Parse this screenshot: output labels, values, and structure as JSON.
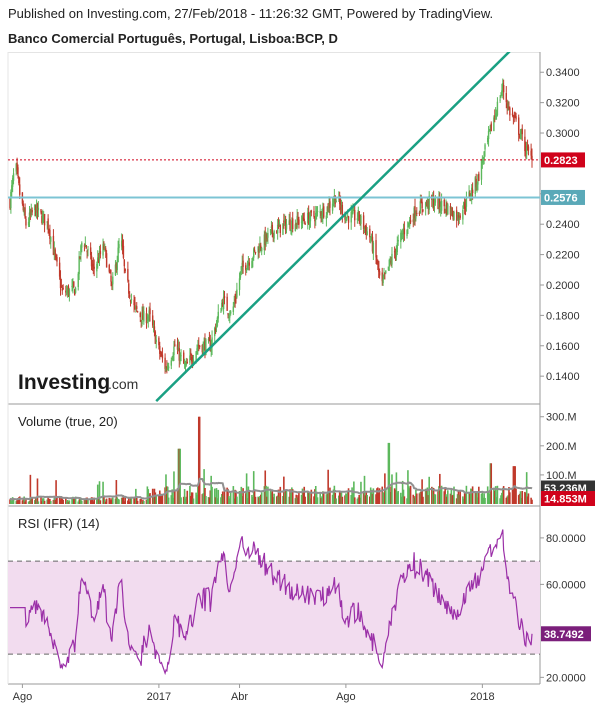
{
  "header": {
    "published": "Published on Investing.com, 27/Feb/2018 - 11:26:32 GMT, Powered by TradingView.",
    "title": "Banco Comercial Português, Portugal, Lisboa:BCP, D"
  },
  "logo": {
    "text": "Investing",
    "suffix": ".com"
  },
  "colors": {
    "up": "#5cb85c",
    "down": "#c0392b",
    "trendline": "#1aa083",
    "support": "#7cc4d4",
    "price_tag": "#d0021b",
    "support_tag": "#5aa9b8",
    "volume_ma": "#909090",
    "rsi_line": "#9b30a8",
    "rsi_band": "#f2dcef",
    "volume_tag": "#333333",
    "rsi_tag": "#7b1f7b"
  },
  "chart_data": [
    {
      "type": "candlestick",
      "panel": "price",
      "title": "Banco Comercial Português, Portugal, Lisboa:BCP, D",
      "x_ticks": [
        "Ago",
        "2017",
        "Abr",
        "Ago",
        "2018"
      ],
      "x_tick_dates": [
        "2016-08-01",
        "2017-01-02",
        "2017-04-03",
        "2017-08-01",
        "2018-01-02"
      ],
      "y_ticks": [
        "0.1400",
        "0.1600",
        "0.1800",
        "0.2000",
        "0.2200",
        "0.2400",
        "0.2600",
        "0.3000",
        "0.3200",
        "0.3400"
      ],
      "ylim": [
        0.123,
        0.352
      ],
      "anchors": [
        {
          "date": "2016-07-18",
          "close": 0.255
        },
        {
          "date": "2016-07-24",
          "close": 0.28
        },
        {
          "date": "2016-07-29",
          "close": 0.26
        },
        {
          "date": "2016-08-05",
          "close": 0.24
        },
        {
          "date": "2016-08-15",
          "close": 0.25
        },
        {
          "date": "2016-08-30",
          "close": 0.24
        },
        {
          "date": "2016-09-15",
          "close": 0.195
        },
        {
          "date": "2016-09-30",
          "close": 0.197
        },
        {
          "date": "2016-10-08",
          "close": 0.232
        },
        {
          "date": "2016-10-20",
          "close": 0.21
        },
        {
          "date": "2016-11-01",
          "close": 0.225
        },
        {
          "date": "2016-11-10",
          "close": 0.198
        },
        {
          "date": "2016-11-20",
          "close": 0.232
        },
        {
          "date": "2016-11-25",
          "close": 0.205
        },
        {
          "date": "2016-12-05",
          "close": 0.185
        },
        {
          "date": "2016-12-15",
          "close": 0.178
        },
        {
          "date": "2016-12-22",
          "close": 0.18
        },
        {
          "date": "2017-01-03",
          "close": 0.155
        },
        {
          "date": "2017-01-10",
          "close": 0.145
        },
        {
          "date": "2017-01-20",
          "close": 0.16
        },
        {
          "date": "2017-02-01",
          "close": 0.145
        },
        {
          "date": "2017-02-15",
          "close": 0.16
        },
        {
          "date": "2017-03-01",
          "close": 0.16
        },
        {
          "date": "2017-03-15",
          "close": 0.19
        },
        {
          "date": "2017-03-25",
          "close": 0.18
        },
        {
          "date": "2017-04-05",
          "close": 0.21
        },
        {
          "date": "2017-04-25",
          "close": 0.225
        },
        {
          "date": "2017-05-10",
          "close": 0.235
        },
        {
          "date": "2017-05-25",
          "close": 0.24
        },
        {
          "date": "2017-06-10",
          "close": 0.242
        },
        {
          "date": "2017-06-25",
          "close": 0.245
        },
        {
          "date": "2017-07-10",
          "close": 0.25
        },
        {
          "date": "2017-07-20",
          "close": 0.258
        },
        {
          "date": "2017-08-01",
          "close": 0.245
        },
        {
          "date": "2017-08-15",
          "close": 0.245
        },
        {
          "date": "2017-08-28",
          "close": 0.232
        },
        {
          "date": "2017-09-05",
          "close": 0.215
        },
        {
          "date": "2017-09-10",
          "close": 0.198
        },
        {
          "date": "2017-09-20",
          "close": 0.215
        },
        {
          "date": "2017-10-05",
          "close": 0.235
        },
        {
          "date": "2017-10-20",
          "close": 0.25
        },
        {
          "date": "2017-11-05",
          "close": 0.255
        },
        {
          "date": "2017-11-20",
          "close": 0.252
        },
        {
          "date": "2017-12-05",
          "close": 0.245
        },
        {
          "date": "2017-12-15",
          "close": 0.255
        },
        {
          "date": "2017-12-28",
          "close": 0.27
        },
        {
          "date": "2018-01-08",
          "close": 0.295
        },
        {
          "date": "2018-01-15",
          "close": 0.31
        },
        {
          "date": "2018-01-25",
          "close": 0.33
        },
        {
          "date": "2018-02-01",
          "close": 0.315
        },
        {
          "date": "2018-02-10",
          "close": 0.305
        },
        {
          "date": "2018-02-20",
          "close": 0.29
        },
        {
          "date": "2018-02-27",
          "close": 0.2823
        }
      ],
      "last_price": 0.2823,
      "last_price_label": "0.2823",
      "support_level": 0.2576,
      "support_label": "0.2576",
      "trendline": [
        {
          "date": "2016-12-30",
          "price": 0.1236
        },
        {
          "date": "2018-02-27",
          "price": 0.2762
        }
      ]
    },
    {
      "type": "bar",
      "panel": "volume",
      "label": "Volume (true, 20)",
      "y_ticks": [
        "100.M",
        "200.M",
        "300.M"
      ],
      "ylim": [
        0,
        330
      ],
      "unit": "M",
      "current_volume": 14.853,
      "current_volume_label": "14.853M",
      "ma20": 53.236,
      "ma20_label": "53.236M",
      "spikes": [
        {
          "date": "2017-02-17",
          "value": 300
        },
        {
          "date": "2017-01-25",
          "value": 190
        },
        {
          "date": "2017-09-18",
          "value": 210
        },
        {
          "date": "2018-01-12",
          "value": 140
        },
        {
          "date": "2018-02-07",
          "value": 130
        }
      ]
    },
    {
      "type": "line",
      "panel": "rsi",
      "label": "RSI (IFR) (14)",
      "y_ticks": [
        "20.0000",
        "60.0000",
        "80.0000"
      ],
      "ylim": [
        18,
        92
      ],
      "upper_band": 70,
      "lower_band": 30,
      "last_value": 38.7492,
      "last_value_label": "38.7492"
    }
  ]
}
